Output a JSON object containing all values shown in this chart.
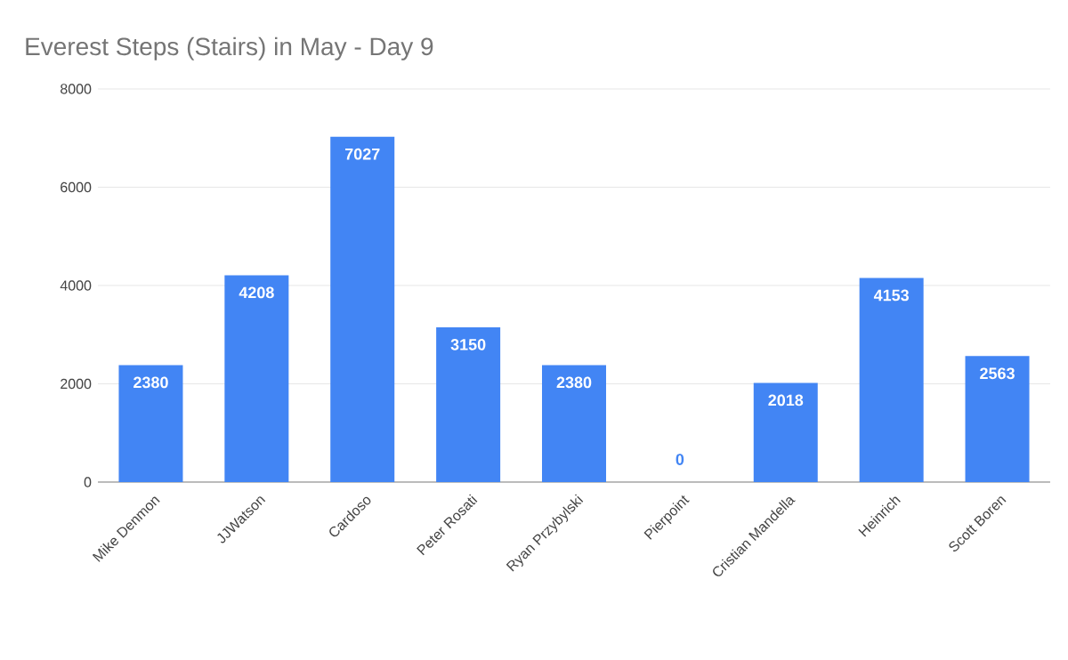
{
  "chart_data": {
    "type": "bar",
    "title": "Everest Steps (Stairs) in May - Day 9",
    "categories": [
      "Mike Denmon",
      "JJWatson",
      "Cardoso",
      "Peter Rosati",
      "Ryan Przybylski",
      "Pierpoint",
      "Cristian Mandella",
      "Heinrich",
      "Scott Boren"
    ],
    "values": [
      2380,
      4208,
      7027,
      3150,
      2380,
      0,
      2018,
      4153,
      2563
    ],
    "color": "#4285f4",
    "ylim": [
      0,
      8000
    ],
    "yticks": [
      0,
      2000,
      4000,
      6000,
      8000
    ],
    "grid": "y",
    "data_labels": true
  }
}
